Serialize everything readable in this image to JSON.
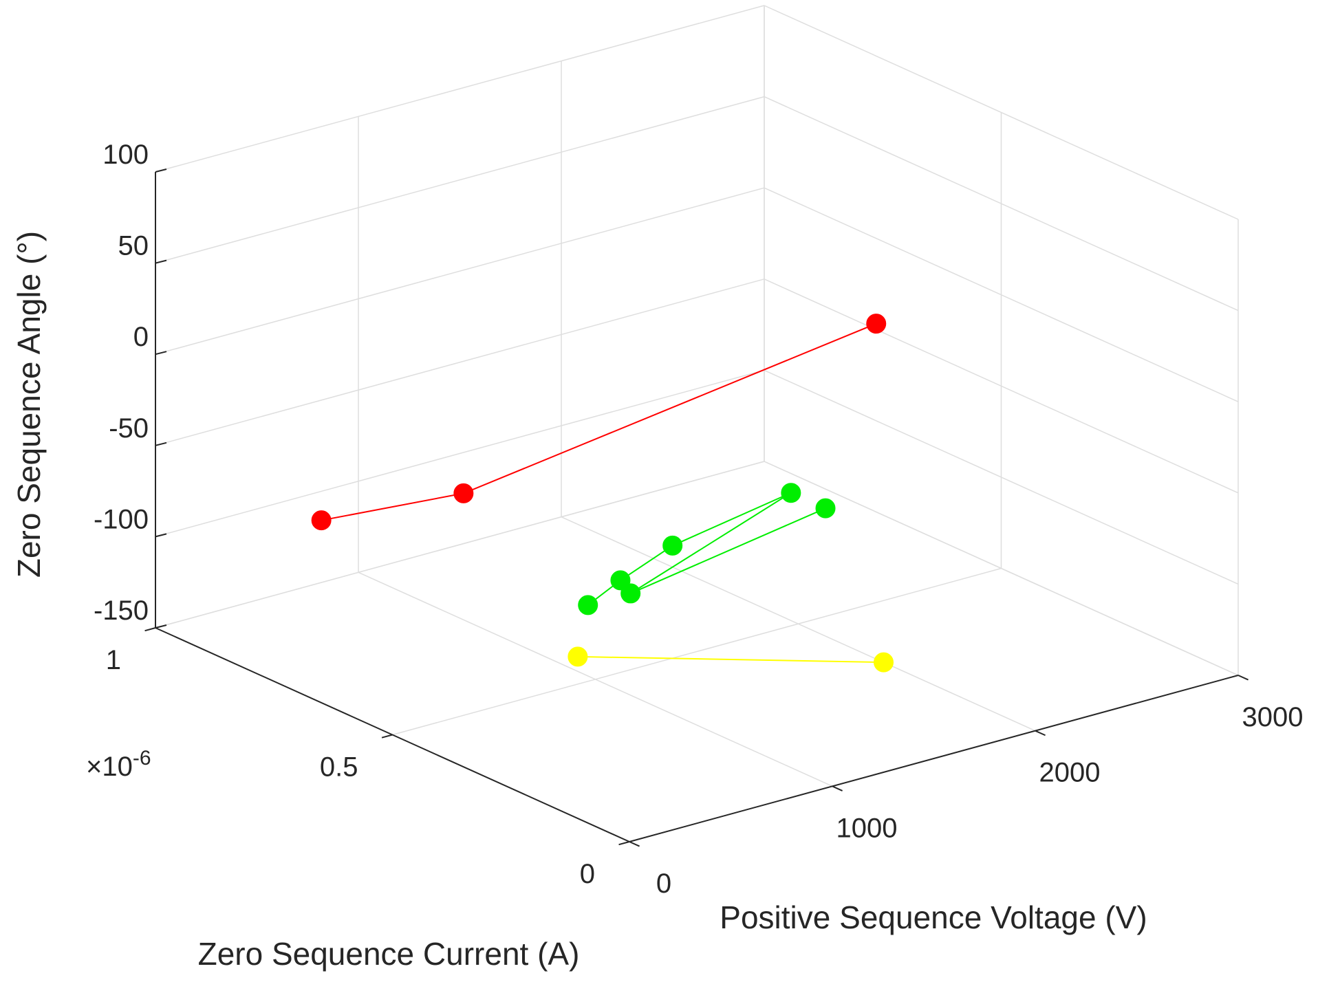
{
  "chart_data": {
    "type": "scatter3d",
    "title": "",
    "xlabel": "Positive Sequence Voltage (V)",
    "ylabel": "Zero Sequence Current (A)",
    "zlabel": "Zero Sequence Angle (°)",
    "xlim": [
      0,
      3000
    ],
    "ylim": [
      0,
      1e-06
    ],
    "zlim": [
      -150,
      100
    ],
    "x_ticks": [
      0,
      1000,
      2000,
      3000
    ],
    "x_tick_labels": [
      "0",
      "1000",
      "2000",
      "3000"
    ],
    "y_ticks": [
      0,
      5e-07,
      1e-06
    ],
    "y_tick_labels": [
      "0",
      "0.5",
      "1"
    ],
    "y_exponent_label": "×10",
    "y_exponent": "-6",
    "z_ticks": [
      -150,
      -100,
      -50,
      0,
      50,
      100
    ],
    "z_tick_labels": [
      "-150",
      "-100",
      "-50",
      "0",
      "50",
      "100"
    ],
    "grid": true,
    "legend": "none",
    "series": [
      {
        "color": "#ff0000",
        "points": [
          {
            "x": 0,
            "y": 6.5e-07,
            "z": -50
          },
          {
            "x": 0,
            "y": 3.5e-07,
            "z": 0
          },
          {
            "x": 1800,
            "y": 2.5e-07,
            "z": 50
          }
        ]
      },
      {
        "color": "#00ee00",
        "points": [
          {
            "x": 800,
            "y": 4.3e-07,
            "z": -95
          },
          {
            "x": 820,
            "y": 3.7e-07,
            "z": -75
          },
          {
            "x": 1030,
            "y": 3.5e-07,
            "z": -60
          },
          {
            "x": 1380,
            "y": 2.5e-07,
            "z": -30
          },
          {
            "x": 1010,
            "y": 4.3e-07,
            "z": -95
          },
          {
            "x": 1480,
            "y": 2.2e-07,
            "z": -38
          }
        ]
      },
      {
        "color": "#ffff00",
        "points": [
          {
            "x": 1100,
            "y": 5.8e-07,
            "z": -150
          },
          {
            "x": 2000,
            "y": 3.2e-07,
            "z": -150
          }
        ]
      }
    ]
  }
}
